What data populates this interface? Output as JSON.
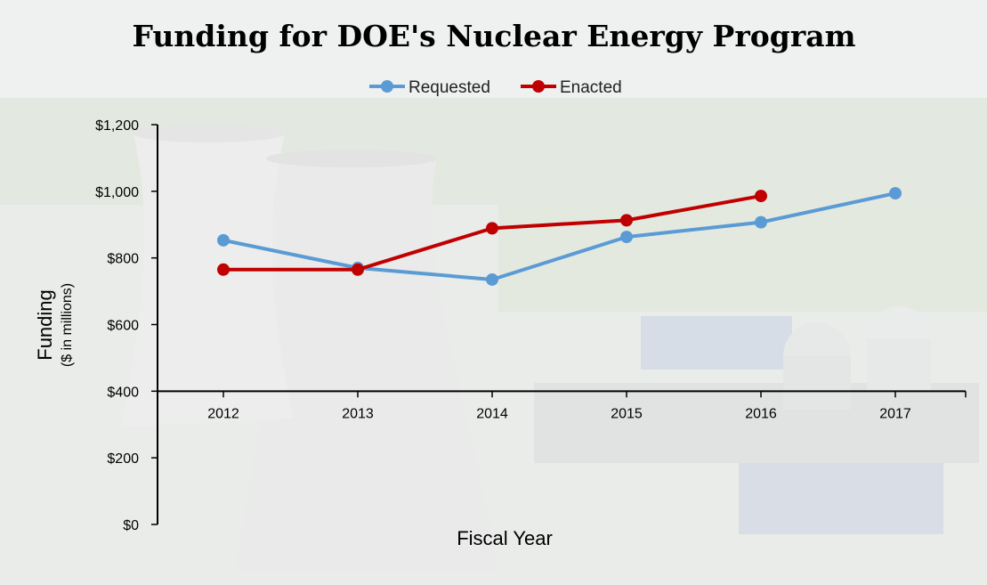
{
  "chart_data": {
    "type": "line",
    "title": "Funding for DOE's Nuclear Energy Program",
    "xlabel": "Fiscal Year",
    "ylabel": "Funding",
    "ylabel_sub": "($ in millions)",
    "x": [
      "2012",
      "2013",
      "2014",
      "2015",
      "2016",
      "2017"
    ],
    "ylim": [
      0,
      1200
    ],
    "yticks": [
      0,
      200,
      400,
      600,
      800,
      1000,
      1200
    ],
    "ytick_labels": [
      "$0",
      "$200",
      "$400",
      "$600",
      "$800",
      "$1,000",
      "$1,200"
    ],
    "x_axis_crosses_at": 400,
    "legend_position": "top-center",
    "grid": false,
    "series": [
      {
        "name": "Requested",
        "color": "#5b9bd5",
        "values": [
          853,
          770,
          735,
          863,
          907,
          994
        ]
      },
      {
        "name": "Enacted",
        "color": "#c00000",
        "values": [
          765,
          765,
          889,
          913,
          986,
          null
        ]
      }
    ]
  }
}
